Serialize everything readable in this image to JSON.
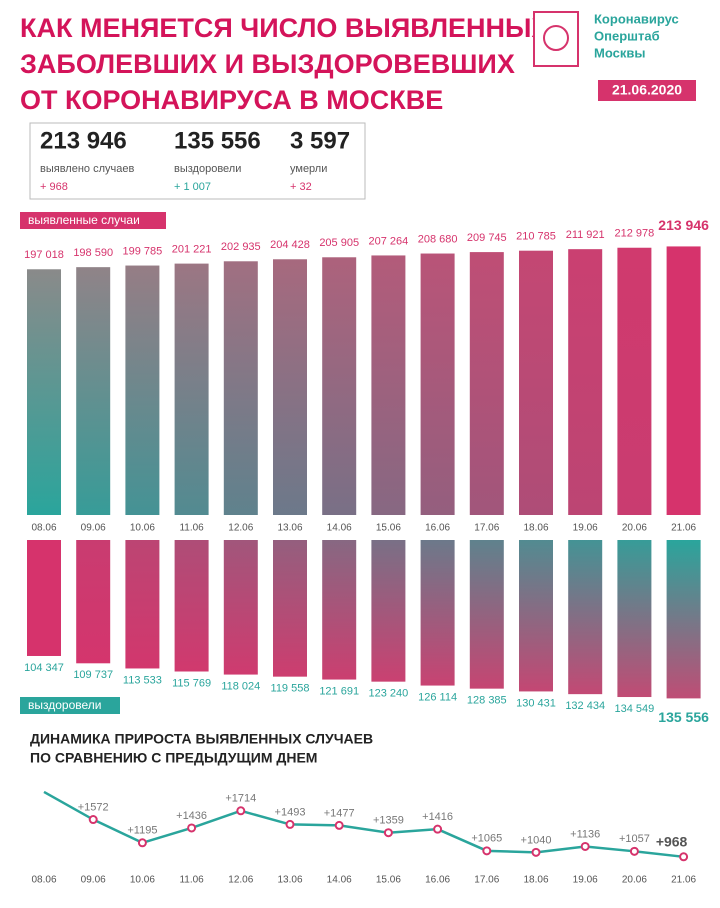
{
  "header": {
    "title": [
      "КАК МЕНЯЕТСЯ ЧИСЛО ВЫЯВЛЕННЫХ",
      "ЗАБОЛЕВШИХ И ВЫЗДОРОВЕВШИХ",
      "ОТ КОРОНАВИРУСА В МОСКВЕ"
    ],
    "logo": [
      "Коронавирус",
      "Оперштаб",
      "Москвы"
    ],
    "date": "21.06.2020"
  },
  "summary": [
    {
      "value": "213 946",
      "label": "выявлено случаев",
      "delta": "+ 968"
    },
    {
      "value": "135 556",
      "label": "выздоровели",
      "delta": "+ 1 007"
    },
    {
      "value": "3 597",
      "label": "умерли",
      "delta": "+ 32"
    }
  ],
  "chart_data": [
    {
      "type": "bar",
      "direction": "up",
      "label": "выявленные случаи",
      "colors": [
        "#2aa59c",
        "#d6336c"
      ],
      "categories": [
        "08.06",
        "09.06",
        "10.06",
        "11.06",
        "12.06",
        "13.06",
        "14.06",
        "15.06",
        "16.06",
        "17.06",
        "18.06",
        "19.06",
        "20.06",
        "21.06"
      ],
      "values": [
        197018,
        198590,
        199785,
        201221,
        202935,
        204428,
        205905,
        207264,
        208680,
        209745,
        210785,
        211921,
        212978,
        213946
      ],
      "value_labels": [
        "197 018",
        "198 590",
        "199 785",
        "201 221",
        "202 935",
        "204 428",
        "205 905",
        "207 264",
        "208 680",
        "209 745",
        "210 785",
        "211 921",
        "212 978",
        "213 946"
      ],
      "ylim": [
        15000,
        215000
      ]
    },
    {
      "type": "bar",
      "direction": "down",
      "label": "выздоровели",
      "colors": [
        "#2aa59c",
        "#d6336c"
      ],
      "values": [
        104347,
        109737,
        113533,
        115769,
        118024,
        119558,
        121691,
        123240,
        126114,
        128385,
        130431,
        132434,
        134549,
        135556
      ],
      "value_labels": [
        "104 347",
        "109 737",
        "113 533",
        "115 769",
        "118 024",
        "119 558",
        "121 691",
        "123 240",
        "126 114",
        "128 385",
        "130 431",
        "132 434",
        "134 549",
        "135 556"
      ],
      "ylim": [
        19000,
        136000
      ]
    },
    {
      "type": "line",
      "title": [
        "ДИНАМИКА ПРИРОСТА ВЫЯВЛЕННЫХ СЛУЧАЕВ",
        "ПО СРАВНЕНИЮ С ПРЕДЫДУЩИМ ДНЕМ"
      ],
      "color": "#2aa59c",
      "marker_color": "#d6336c",
      "categories": [
        "08.06",
        "09.06",
        "10.06",
        "11.06",
        "12.06",
        "13.06",
        "14.06",
        "15.06",
        "16.06",
        "17.06",
        "18.06",
        "19.06",
        "20.06",
        "21.06"
      ],
      "values": [
        2020,
        1572,
        1195,
        1436,
        1714,
        1493,
        1477,
        1359,
        1416,
        1065,
        1040,
        1136,
        1057,
        968
      ],
      "value_labels": [
        null,
        "+1572",
        "+1195",
        "+1436",
        "+1714",
        "+1493",
        "+1477",
        "+1359",
        "+1416",
        "+1065",
        "+1040",
        "+1136",
        "+1057",
        "+968"
      ],
      "ylim": [
        900,
        2100
      ]
    }
  ]
}
